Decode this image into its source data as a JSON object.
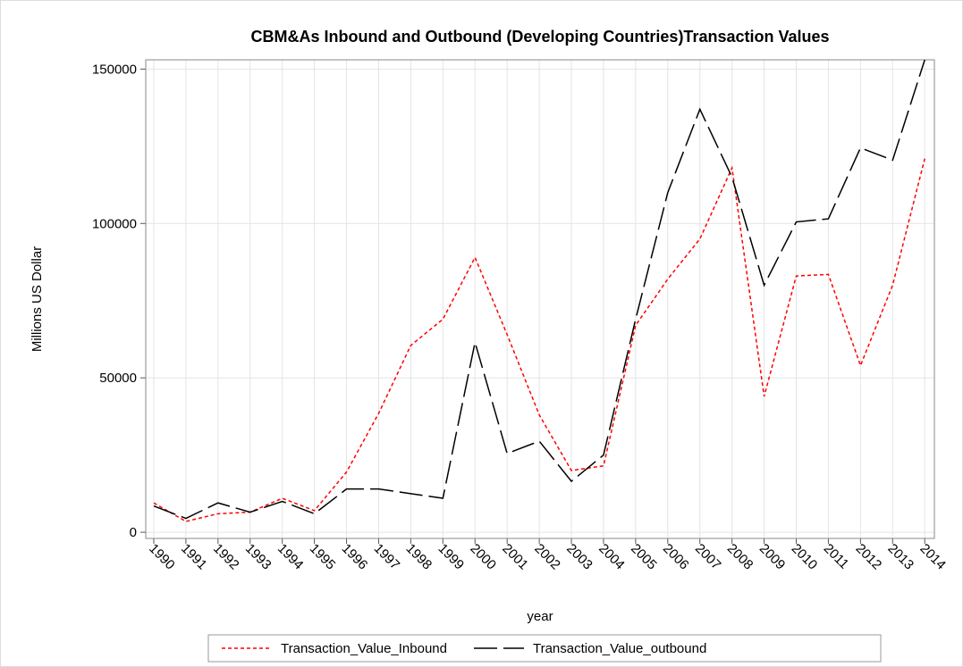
{
  "chart_data": {
    "type": "line",
    "title": "CBM&As Inbound and Outbound (Developing Countries)Transaction Values",
    "x_label": "year",
    "y_label": "Millions US Dollar",
    "x": [
      1990,
      1991,
      1992,
      1993,
      1994,
      1995,
      1996,
      1997,
      1998,
      1999,
      2000,
      2001,
      2002,
      2003,
      2004,
      2005,
      2006,
      2007,
      2008,
      2009,
      2010,
      2011,
      2012,
      2013,
      2014
    ],
    "series": [
      {
        "name": "Transaction_Value_Inbound",
        "color": "#ff0000",
        "dash": "dotted",
        "values": [
          9500,
          3500,
          6000,
          6500,
          11000,
          7000,
          19500,
          38500,
          60500,
          69000,
          89000,
          64000,
          38000,
          20000,
          21500,
          67000,
          82000,
          95000,
          118000,
          44000,
          83000,
          83500,
          54000,
          80000,
          121000
        ]
      },
      {
        "name": "Transaction_Value_outbound",
        "color": "#000000",
        "dash": "long",
        "values": [
          8500,
          4500,
          9500,
          6500,
          10000,
          6000,
          14000,
          14000,
          12500,
          11000,
          61500,
          25500,
          29500,
          16500,
          25000,
          69000,
          110000,
          137000,
          115000,
          80000,
          100500,
          101500,
          124500,
          120500,
          153000
        ]
      }
    ],
    "xlim": [
      1989.75,
      2014.3
    ],
    "xticks": [
      1990,
      1991,
      1992,
      1993,
      1994,
      1995,
      1996,
      1997,
      1998,
      1999,
      2000,
      2001,
      2002,
      2003,
      2004,
      2005,
      2006,
      2007,
      2008,
      2009,
      2010,
      2011,
      2012,
      2013,
      2014
    ],
    "ylim": [
      -2000,
      153000
    ],
    "yticks": [
      0,
      50000,
      100000,
      150000
    ],
    "grid": true,
    "legend": "bottom"
  }
}
